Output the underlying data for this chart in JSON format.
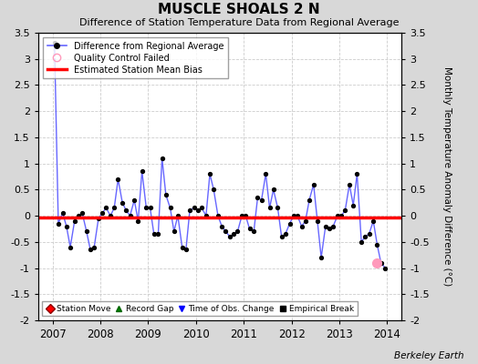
{
  "title": "MUSCLE SHOALS 2 N",
  "subtitle": "Difference of Station Temperature Data from Regional Average",
  "ylabel_right": "Monthly Temperature Anomaly Difference (°C)",
  "footer": "Berkeley Earth",
  "xlim": [
    2006.7,
    2014.3
  ],
  "ylim": [
    -2.0,
    3.5
  ],
  "yticks": [
    -2.0,
    -1.5,
    -1.0,
    -0.5,
    0.0,
    0.5,
    1.0,
    1.5,
    2.0,
    2.5,
    3.0,
    3.5
  ],
  "xticks": [
    2007,
    2008,
    2009,
    2010,
    2011,
    2012,
    2013,
    2014
  ],
  "bias_line_y": -0.03,
  "fig_bg_color": "#d8d8d8",
  "plot_bg_color": "#ffffff",
  "line_color": "#6666ff",
  "bias_color": "#ff0000",
  "marker_color": "#000000",
  "qc_fail_color": "#ff99bb",
  "times": [
    2007.04,
    2007.12,
    2007.21,
    2007.29,
    2007.37,
    2007.46,
    2007.54,
    2007.62,
    2007.71,
    2007.79,
    2007.87,
    2007.96,
    2008.04,
    2008.12,
    2008.21,
    2008.29,
    2008.37,
    2008.46,
    2008.54,
    2008.62,
    2008.71,
    2008.79,
    2008.87,
    2008.96,
    2009.04,
    2009.12,
    2009.21,
    2009.29,
    2009.37,
    2009.46,
    2009.54,
    2009.62,
    2009.71,
    2009.79,
    2009.87,
    2009.96,
    2010.04,
    2010.12,
    2010.21,
    2010.29,
    2010.37,
    2010.46,
    2010.54,
    2010.62,
    2010.71,
    2010.79,
    2010.87,
    2010.96,
    2011.04,
    2011.12,
    2011.21,
    2011.29,
    2011.37,
    2011.46,
    2011.54,
    2011.62,
    2011.71,
    2011.79,
    2011.87,
    2011.96,
    2012.04,
    2012.12,
    2012.21,
    2012.29,
    2012.37,
    2012.46,
    2012.54,
    2012.62,
    2012.71,
    2012.79,
    2012.87,
    2012.96,
    2013.04,
    2013.12,
    2013.21,
    2013.29,
    2013.37,
    2013.46,
    2013.54,
    2013.62,
    2013.71,
    2013.79,
    2013.87,
    2013.96
  ],
  "values": [
    3.3,
    -0.15,
    0.05,
    -0.2,
    -0.6,
    -0.1,
    0.0,
    0.05,
    -0.3,
    -0.65,
    -0.6,
    -0.05,
    0.05,
    0.15,
    0.0,
    0.15,
    0.7,
    0.25,
    0.1,
    0.0,
    0.3,
    -0.1,
    0.85,
    0.15,
    0.15,
    -0.35,
    -0.35,
    1.1,
    0.4,
    0.15,
    -0.3,
    0.0,
    -0.6,
    -0.65,
    0.1,
    0.15,
    0.1,
    0.15,
    0.0,
    0.8,
    0.5,
    0.0,
    -0.2,
    -0.3,
    -0.4,
    -0.35,
    -0.3,
    0.0,
    0.0,
    -0.25,
    -0.3,
    0.35,
    0.3,
    0.8,
    0.15,
    0.5,
    0.15,
    -0.4,
    -0.35,
    -0.15,
    0.0,
    0.0,
    -0.2,
    -0.1,
    0.3,
    0.6,
    -0.1,
    -0.8,
    -0.2,
    -0.25,
    -0.2,
    0.0,
    0.0,
    0.1,
    0.6,
    0.2,
    0.8,
    -0.5,
    -0.4,
    -0.35,
    -0.1,
    -0.55,
    -0.9,
    -1.0
  ],
  "qc_fail_times": [
    2013.79
  ],
  "qc_fail_values": [
    -0.9
  ]
}
